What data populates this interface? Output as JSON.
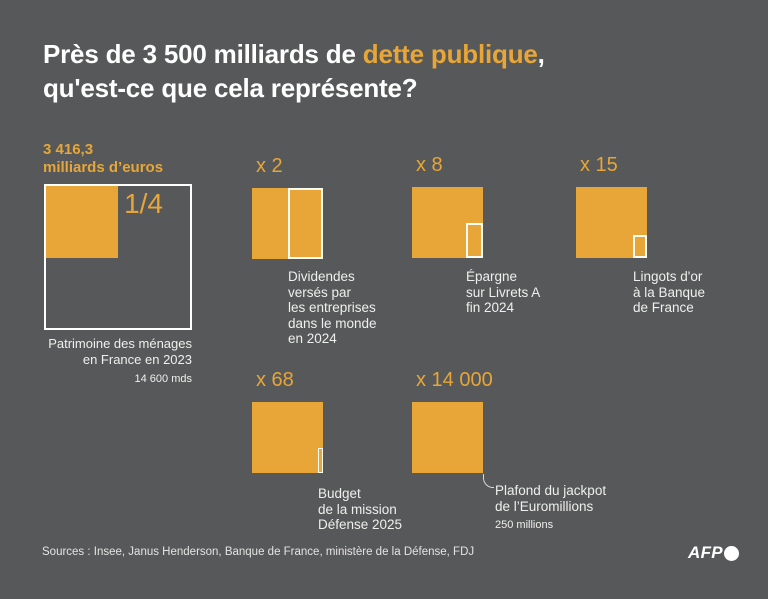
{
  "colors": {
    "background": "#575859",
    "accent_orange": "#e7a637",
    "text_white": "#ffffff"
  },
  "title": {
    "line1_pre": "Près de 3 500 milliards de ",
    "line1_accent": "dette publique",
    "line1_post": ",",
    "line2": "qu'est-ce que cela représente?"
  },
  "reference": {
    "amount_line1": "3 416,3",
    "amount_line2": "milliards d’euros",
    "fraction": "1/4",
    "caption_lines": [
      "Patrimoine des ménages",
      "en France en 2023"
    ],
    "caption_sub": "14 600 mds"
  },
  "comparisons": [
    {
      "multiplier": "x 2",
      "lines": [
        "Dividendes",
        "versés par",
        "les entreprises",
        "dans le monde",
        "en 2024"
      ]
    },
    {
      "multiplier": "x 8",
      "lines": [
        "Épargne",
        "sur Livrets A",
        "fin 2024"
      ]
    },
    {
      "multiplier": "x 15",
      "lines": [
        "Lingots d'or",
        "à la Banque",
        "de France"
      ]
    },
    {
      "multiplier": "x 68",
      "lines": [
        "Budget",
        "de la mission",
        "Défense 2025"
      ]
    },
    {
      "multiplier": "x 14 000",
      "lines": [
        "Plafond du jackpot",
        "de l’Euromillions"
      ],
      "sub": "250 millions"
    }
  ],
  "footer": {
    "sources": "Sources : Insee, Janus Henderson, Banque de France, ministère de la Défense, FDJ",
    "logo_text": "AFP"
  },
  "chart_data": {
    "type": "area",
    "title": "Près de 3 500 milliards de dette publique, qu'est-ce que cela représente?",
    "reference": {
      "label": "Dette publique",
      "value_milliards_eur": 3416.3
    },
    "items": [
      {
        "label": "Patrimoine des ménages en France en 2023",
        "value_milliards_eur": 14600,
        "relation_to_debt": "1/4"
      },
      {
        "label": "Dividendes versés par les entreprises dans le monde en 2024",
        "relation_to_debt": "x 2"
      },
      {
        "label": "Épargne sur Livrets A fin 2024",
        "relation_to_debt": "x 8"
      },
      {
        "label": "Lingots d'or à la Banque de France",
        "relation_to_debt": "x 15"
      },
      {
        "label": "Budget de la mission Défense 2025",
        "relation_to_debt": "x 68"
      },
      {
        "label": "Plafond du jackpot de l'Euromillions",
        "value": "250 millions",
        "relation_to_debt": "x 14 000"
      }
    ],
    "legend_position": "none",
    "grid": false
  }
}
